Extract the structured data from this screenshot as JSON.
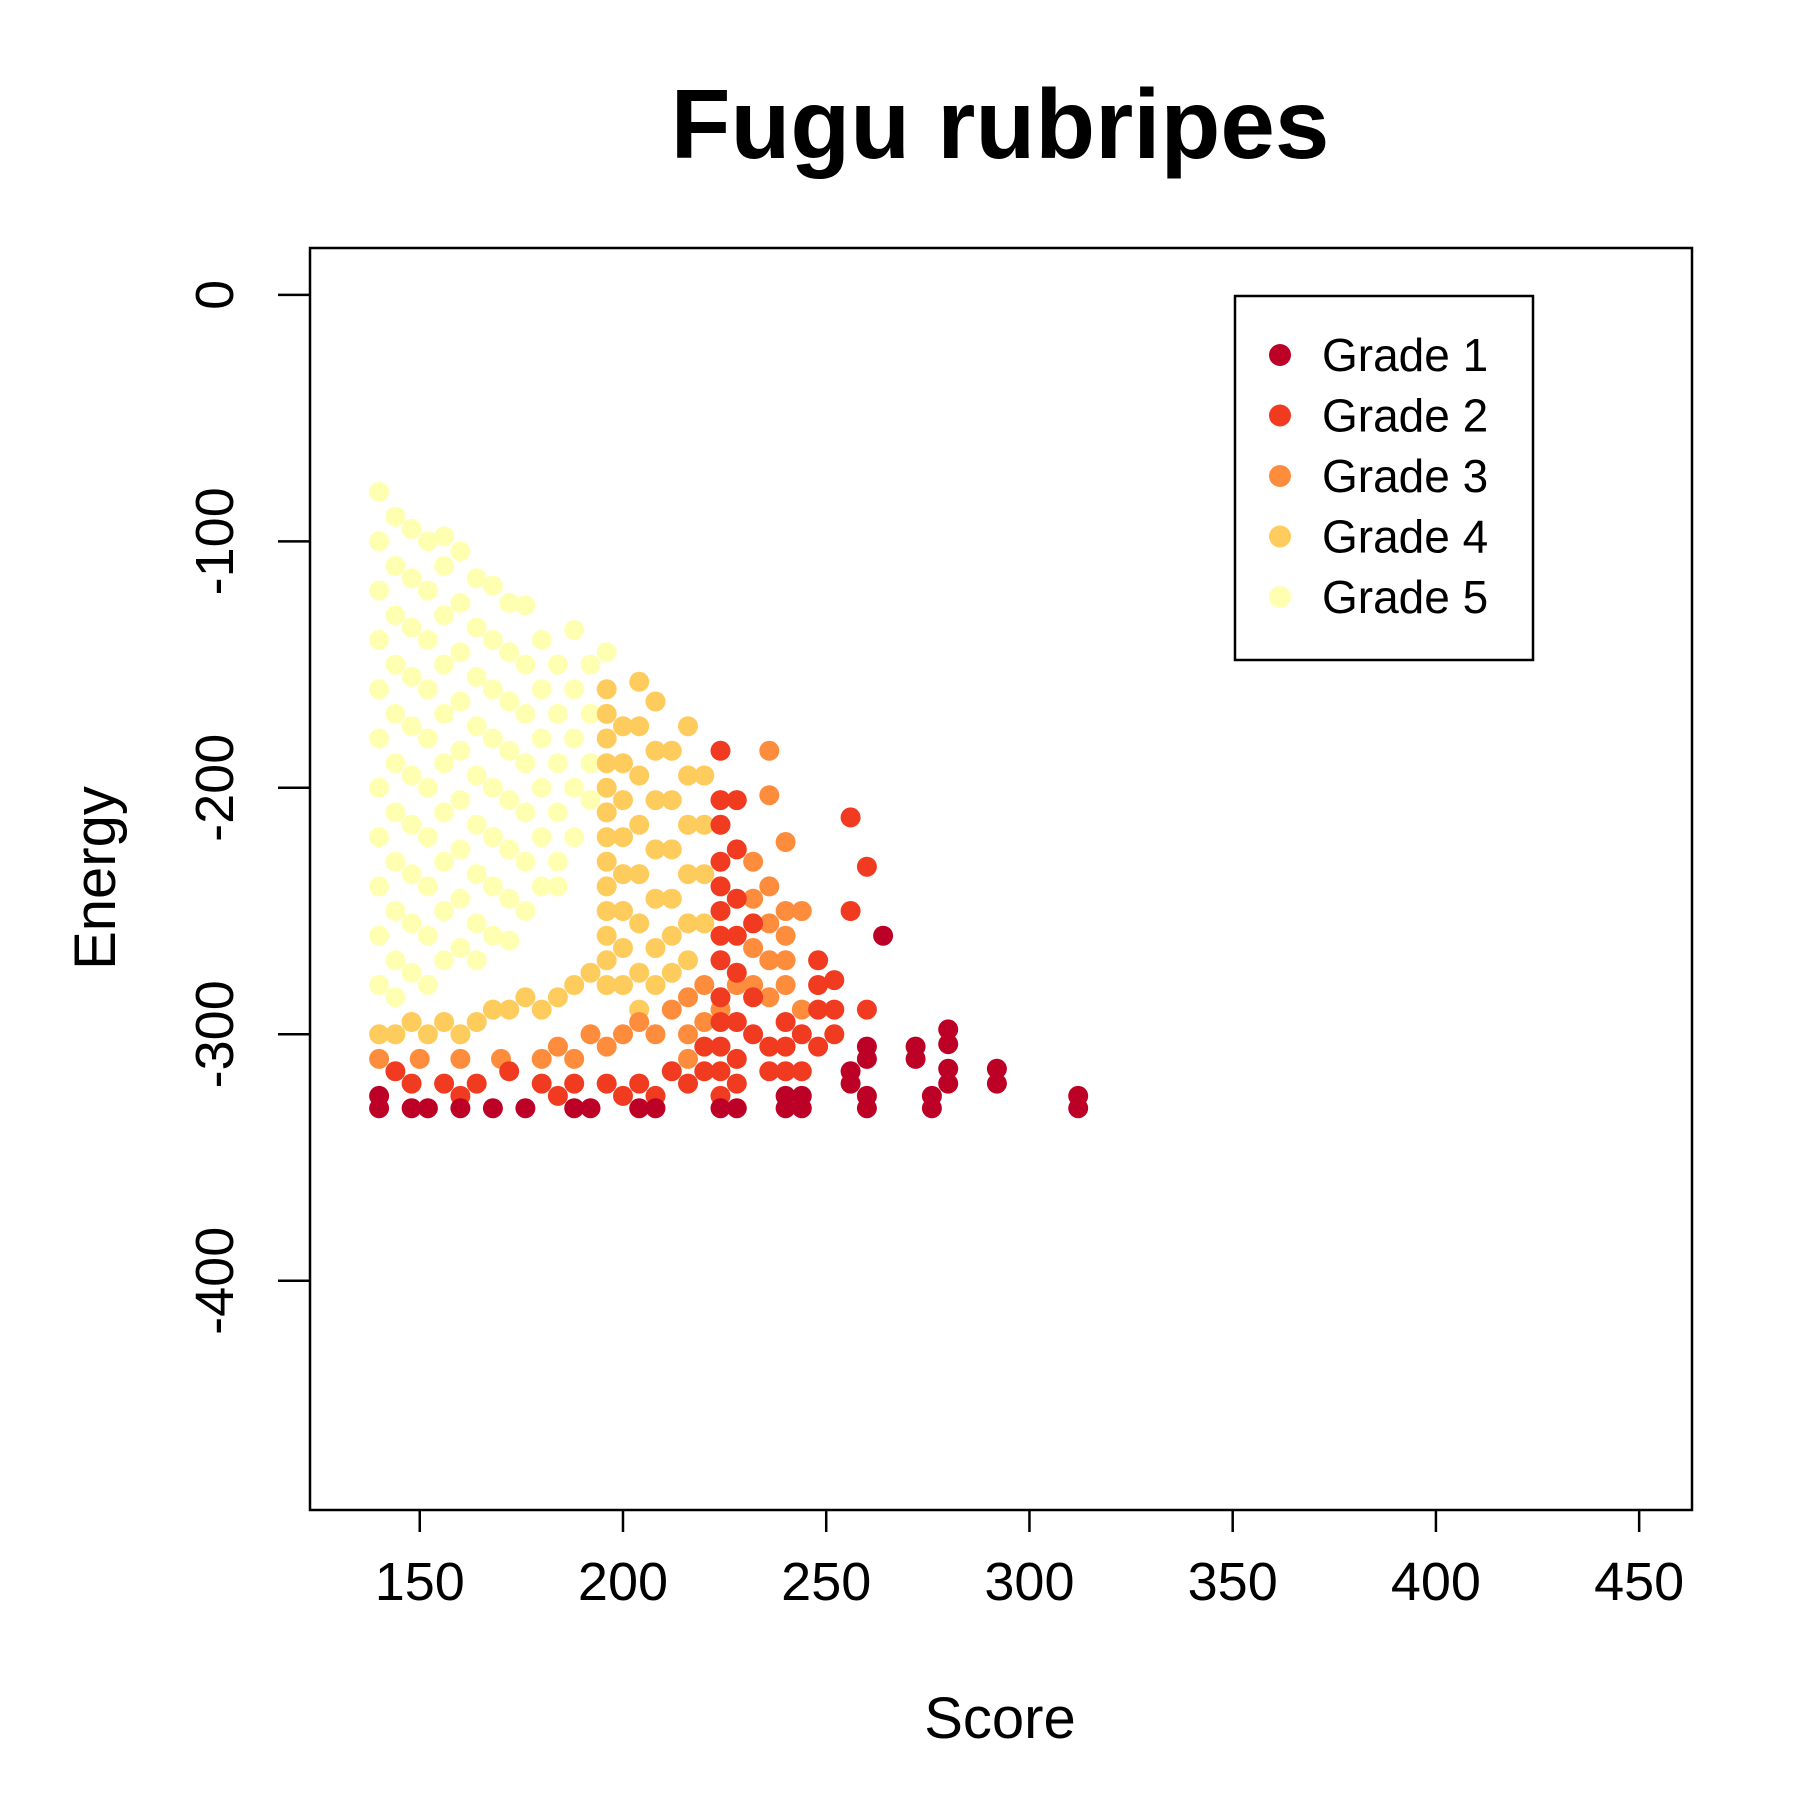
{
  "chart_data": {
    "type": "scatter",
    "title": "Fugu rubripes",
    "xlabel": "Score",
    "ylabel": "Energy",
    "xlim": [
      123,
      463
    ],
    "ylim": [
      -493,
      19
    ],
    "xticks": [
      150,
      200,
      250,
      300,
      350,
      400,
      450
    ],
    "yticks": [
      0,
      -100,
      -200,
      -300,
      -400
    ],
    "grid": false,
    "legend_position": "top-right",
    "series": [
      {
        "name": "Grade 1",
        "color": "#BD0026",
        "points": [
          [
            140,
            -325
          ],
          [
            140,
            -330
          ],
          [
            148,
            -330
          ],
          [
            152,
            -330
          ],
          [
            160,
            -330
          ],
          [
            168,
            -330
          ],
          [
            176,
            -330
          ],
          [
            188,
            -330
          ],
          [
            192,
            -330
          ],
          [
            204,
            -330
          ],
          [
            208,
            -330
          ],
          [
            224,
            -330
          ],
          [
            228,
            -330
          ],
          [
            240,
            -325
          ],
          [
            240,
            -330
          ],
          [
            244,
            -325
          ],
          [
            244,
            -330
          ],
          [
            256,
            -315
          ],
          [
            256,
            -320
          ],
          [
            260,
            -305
          ],
          [
            260,
            -310
          ],
          [
            260,
            -325
          ],
          [
            260,
            -330
          ],
          [
            264,
            -260
          ],
          [
            272,
            -305
          ],
          [
            272,
            -310
          ],
          [
            276,
            -325
          ],
          [
            276,
            -330
          ],
          [
            280,
            -298
          ],
          [
            280,
            -304
          ],
          [
            280,
            -314
          ],
          [
            280,
            -320
          ],
          [
            292,
            -314
          ],
          [
            292,
            -320
          ],
          [
            312,
            -325
          ],
          [
            312,
            -330
          ]
        ]
      },
      {
        "name": "Grade 2",
        "color": "#F03B20",
        "points": [
          [
            144,
            -315
          ],
          [
            148,
            -320
          ],
          [
            156,
            -320
          ],
          [
            160,
            -325
          ],
          [
            164,
            -320
          ],
          [
            172,
            -315
          ],
          [
            180,
            -320
          ],
          [
            184,
            -325
          ],
          [
            188,
            -320
          ],
          [
            196,
            -320
          ],
          [
            200,
            -325
          ],
          [
            204,
            -320
          ],
          [
            208,
            -325
          ],
          [
            212,
            -315
          ],
          [
            216,
            -320
          ],
          [
            220,
            -305
          ],
          [
            220,
            -315
          ],
          [
            224,
            -185
          ],
          [
            224,
            -205
          ],
          [
            224,
            -215
          ],
          [
            224,
            -230
          ],
          [
            224,
            -240
          ],
          [
            224,
            -250
          ],
          [
            224,
            -260
          ],
          [
            224,
            -270
          ],
          [
            224,
            -285
          ],
          [
            224,
            -295
          ],
          [
            224,
            -305
          ],
          [
            224,
            -315
          ],
          [
            224,
            -325
          ],
          [
            228,
            -205
          ],
          [
            228,
            -225
          ],
          [
            228,
            -245
          ],
          [
            228,
            -260
          ],
          [
            228,
            -275
          ],
          [
            228,
            -295
          ],
          [
            228,
            -310
          ],
          [
            228,
            -320
          ],
          [
            232,
            -255
          ],
          [
            232,
            -285
          ],
          [
            232,
            -300
          ],
          [
            236,
            -305
          ],
          [
            236,
            -315
          ],
          [
            240,
            -295
          ],
          [
            240,
            -305
          ],
          [
            240,
            -315
          ],
          [
            244,
            -300
          ],
          [
            244,
            -315
          ],
          [
            248,
            -270
          ],
          [
            248,
            -280
          ],
          [
            248,
            -290
          ],
          [
            248,
            -305
          ],
          [
            252,
            -278
          ],
          [
            252,
            -290
          ],
          [
            252,
            -300
          ],
          [
            256,
            -212
          ],
          [
            256,
            -250
          ],
          [
            260,
            -232
          ],
          [
            260,
            -290
          ]
        ]
      },
      {
        "name": "Grade 3",
        "color": "#FD8D3C",
        "points": [
          [
            140,
            -310
          ],
          [
            150,
            -310
          ],
          [
            160,
            -310
          ],
          [
            170,
            -310
          ],
          [
            180,
            -310
          ],
          [
            184,
            -305
          ],
          [
            188,
            -310
          ],
          [
            192,
            -300
          ],
          [
            196,
            -305
          ],
          [
            200,
            -300
          ],
          [
            204,
            -295
          ],
          [
            208,
            -300
          ],
          [
            212,
            -290
          ],
          [
            216,
            -285
          ],
          [
            216,
            -300
          ],
          [
            216,
            -310
          ],
          [
            220,
            -280
          ],
          [
            220,
            -295
          ],
          [
            224,
            -290
          ],
          [
            228,
            -280
          ],
          [
            232,
            -230
          ],
          [
            232,
            -245
          ],
          [
            232,
            -265
          ],
          [
            232,
            -280
          ],
          [
            236,
            -185
          ],
          [
            236,
            -203
          ],
          [
            236,
            -240
          ],
          [
            236,
            -255
          ],
          [
            236,
            -270
          ],
          [
            236,
            -285
          ],
          [
            240,
            -222
          ],
          [
            240,
            -250
          ],
          [
            240,
            -260
          ],
          [
            240,
            -270
          ],
          [
            240,
            -280
          ],
          [
            244,
            -250
          ],
          [
            244,
            -290
          ]
        ]
      },
      {
        "name": "Grade 4",
        "color": "#FECC5C",
        "points": [
          [
            140,
            -300
          ],
          [
            144,
            -300
          ],
          [
            148,
            -295
          ],
          [
            152,
            -300
          ],
          [
            156,
            -295
          ],
          [
            160,
            -300
          ],
          [
            164,
            -295
          ],
          [
            168,
            -290
          ],
          [
            172,
            -290
          ],
          [
            176,
            -285
          ],
          [
            180,
            -290
          ],
          [
            184,
            -285
          ],
          [
            188,
            -280
          ],
          [
            192,
            -275
          ],
          [
            196,
            -160
          ],
          [
            196,
            -170
          ],
          [
            196,
            -180
          ],
          [
            196,
            -190
          ],
          [
            196,
            -200
          ],
          [
            196,
            -210
          ],
          [
            196,
            -220
          ],
          [
            196,
            -230
          ],
          [
            196,
            -240
          ],
          [
            196,
            -250
          ],
          [
            196,
            -260
          ],
          [
            196,
            -270
          ],
          [
            196,
            -280
          ],
          [
            200,
            -175
          ],
          [
            200,
            -190
          ],
          [
            200,
            -205
          ],
          [
            200,
            -220
          ],
          [
            200,
            -235
          ],
          [
            200,
            -250
          ],
          [
            200,
            -265
          ],
          [
            200,
            -280
          ],
          [
            204,
            -157
          ],
          [
            204,
            -175
          ],
          [
            204,
            -195
          ],
          [
            204,
            -215
          ],
          [
            204,
            -235
          ],
          [
            204,
            -255
          ],
          [
            204,
            -275
          ],
          [
            204,
            -290
          ],
          [
            208,
            -165
          ],
          [
            208,
            -185
          ],
          [
            208,
            -205
          ],
          [
            208,
            -225
          ],
          [
            208,
            -245
          ],
          [
            208,
            -265
          ],
          [
            208,
            -280
          ],
          [
            212,
            -185
          ],
          [
            212,
            -205
          ],
          [
            212,
            -225
          ],
          [
            212,
            -245
          ],
          [
            212,
            -260
          ],
          [
            212,
            -275
          ],
          [
            216,
            -175
          ],
          [
            216,
            -195
          ],
          [
            216,
            -215
          ],
          [
            216,
            -235
          ],
          [
            216,
            -255
          ],
          [
            216,
            -270
          ],
          [
            220,
            -195
          ],
          [
            220,
            -215
          ],
          [
            220,
            -235
          ],
          [
            220,
            -255
          ]
        ]
      },
      {
        "name": "Grade 5",
        "color": "#FFFFB2",
        "points": [
          [
            140,
            -80
          ],
          [
            140,
            -100
          ],
          [
            140,
            -120
          ],
          [
            140,
            -140
          ],
          [
            140,
            -160
          ],
          [
            140,
            -180
          ],
          [
            140,
            -200
          ],
          [
            140,
            -220
          ],
          [
            140,
            -240
          ],
          [
            140,
            -260
          ],
          [
            140,
            -280
          ],
          [
            144,
            -90
          ],
          [
            144,
            -110
          ],
          [
            144,
            -130
          ],
          [
            144,
            -150
          ],
          [
            144,
            -170
          ],
          [
            144,
            -190
          ],
          [
            144,
            -210
          ],
          [
            144,
            -230
          ],
          [
            144,
            -250
          ],
          [
            144,
            -270
          ],
          [
            144,
            -285
          ],
          [
            148,
            -95
          ],
          [
            148,
            -115
          ],
          [
            148,
            -135
          ],
          [
            148,
            -155
          ],
          [
            148,
            -175
          ],
          [
            148,
            -195
          ],
          [
            148,
            -215
          ],
          [
            148,
            -235
          ],
          [
            148,
            -255
          ],
          [
            148,
            -275
          ],
          [
            152,
            -100
          ],
          [
            152,
            -120
          ],
          [
            152,
            -140
          ],
          [
            152,
            -160
          ],
          [
            152,
            -180
          ],
          [
            152,
            -200
          ],
          [
            152,
            -220
          ],
          [
            152,
            -240
          ],
          [
            152,
            -260
          ],
          [
            152,
            -280
          ],
          [
            156,
            -98
          ],
          [
            156,
            -110
          ],
          [
            156,
            -130
          ],
          [
            156,
            -150
          ],
          [
            156,
            -170
          ],
          [
            156,
            -190
          ],
          [
            156,
            -210
          ],
          [
            156,
            -230
          ],
          [
            156,
            -250
          ],
          [
            156,
            -270
          ],
          [
            160,
            -104
          ],
          [
            160,
            -125
          ],
          [
            160,
            -145
          ],
          [
            160,
            -165
          ],
          [
            160,
            -185
          ],
          [
            160,
            -205
          ],
          [
            160,
            -225
          ],
          [
            160,
            -245
          ],
          [
            160,
            -265
          ],
          [
            164,
            -115
          ],
          [
            164,
            -135
          ],
          [
            164,
            -155
          ],
          [
            164,
            -175
          ],
          [
            164,
            -195
          ],
          [
            164,
            -215
          ],
          [
            164,
            -235
          ],
          [
            164,
            -255
          ],
          [
            164,
            -270
          ],
          [
            168,
            -118
          ],
          [
            168,
            -140
          ],
          [
            168,
            -160
          ],
          [
            168,
            -180
          ],
          [
            168,
            -200
          ],
          [
            168,
            -220
          ],
          [
            168,
            -240
          ],
          [
            168,
            -260
          ],
          [
            172,
            -125
          ],
          [
            172,
            -145
          ],
          [
            172,
            -165
          ],
          [
            172,
            -185
          ],
          [
            172,
            -205
          ],
          [
            172,
            -225
          ],
          [
            172,
            -245
          ],
          [
            172,
            -262
          ],
          [
            176,
            -126
          ],
          [
            176,
            -150
          ],
          [
            176,
            -170
          ],
          [
            176,
            -190
          ],
          [
            176,
            -210
          ],
          [
            176,
            -230
          ],
          [
            176,
            -250
          ],
          [
            180,
            -140
          ],
          [
            180,
            -160
          ],
          [
            180,
            -180
          ],
          [
            180,
            -200
          ],
          [
            180,
            -220
          ],
          [
            180,
            -240
          ],
          [
            184,
            -150
          ],
          [
            184,
            -170
          ],
          [
            184,
            -190
          ],
          [
            184,
            -210
          ],
          [
            184,
            -230
          ],
          [
            184,
            -240
          ],
          [
            188,
            -136
          ],
          [
            188,
            -160
          ],
          [
            188,
            -180
          ],
          [
            188,
            -200
          ],
          [
            188,
            -220
          ],
          [
            192,
            -150
          ],
          [
            192,
            -170
          ],
          [
            192,
            -190
          ],
          [
            192,
            -205
          ],
          [
            196,
            -145
          ]
        ]
      }
    ]
  }
}
